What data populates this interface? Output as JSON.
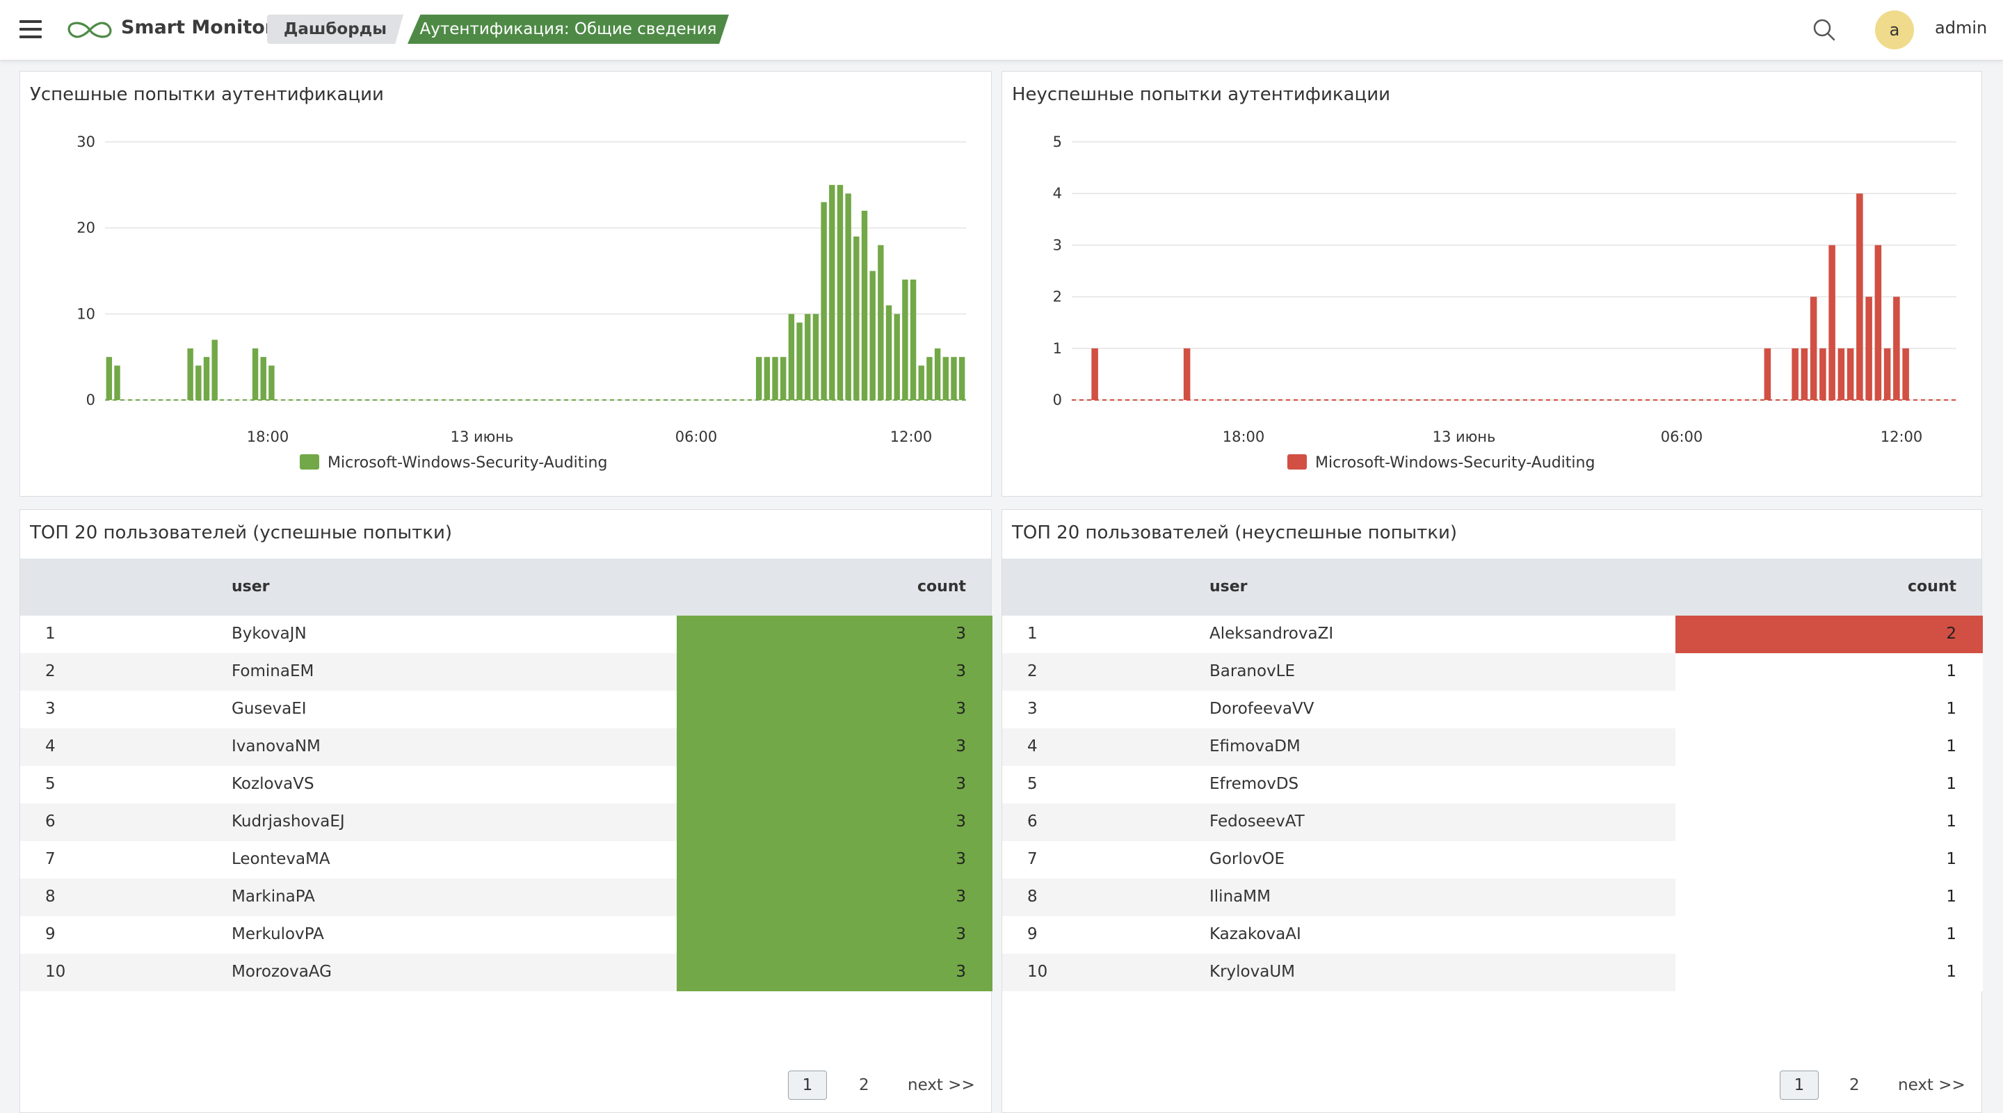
{
  "header": {
    "app_title": "Smart Monitor",
    "breadcrumbs": [
      "Дашборды",
      "Аутентификация: Общие сведения"
    ],
    "user_initial": "a",
    "username": "admin",
    "accent_color": "#4e8a46"
  },
  "panels": {
    "success_chart_title": "Успешные попытки аутентификации",
    "failed_chart_title": "Неуспешные попытки аутентификации",
    "success_table_title": "ТОП 20 пользователей (успешные попытки)",
    "failed_table_title": "ТОП 20 пользователей (неуспешные попытки)"
  },
  "chart_data": [
    {
      "type": "bar",
      "title": "Успешные попытки аутентификации",
      "color": "#72a847",
      "ylim": [
        0,
        30
      ],
      "yticks": [
        0,
        10,
        20,
        30
      ],
      "xticks": [
        "18:00",
        "13 июнь",
        "06:00",
        "12:00"
      ],
      "legend": "Microsoft-Windows-Security-Auditing",
      "legend_position": "bottom-center",
      "grid": true,
      "series": [
        {
          "name": "Microsoft-Windows-Security-Auditing",
          "values": [
            5,
            4,
            0,
            0,
            0,
            0,
            0,
            0,
            0,
            0,
            6,
            4,
            5,
            7,
            0,
            0,
            0,
            0,
            6,
            5,
            4,
            0,
            0,
            0,
            0,
            0,
            0,
            0,
            0,
            0,
            0,
            0,
            0,
            0,
            0,
            0,
            0,
            0,
            0,
            0,
            0,
            0,
            0,
            0,
            0,
            0,
            0,
            0,
            0,
            0,
            0,
            0,
            0,
            0,
            0,
            0,
            0,
            0,
            0,
            0,
            0,
            0,
            0,
            0,
            0,
            0,
            0,
            0,
            0,
            0,
            0,
            0,
            0,
            0,
            0,
            0,
            0,
            0,
            0,
            0,
            5,
            5,
            5,
            5,
            10,
            9,
            10,
            10,
            23,
            25,
            25,
            24,
            19,
            22,
            15,
            18,
            11,
            10,
            14,
            14,
            4,
            5,
            6,
            5,
            5,
            5
          ]
        }
      ]
    },
    {
      "type": "bar",
      "title": "Неуспешные попытки аутентификации",
      "color": "#d14f43",
      "ylim": [
        0,
        5
      ],
      "yticks": [
        0,
        1,
        2,
        3,
        4,
        5
      ],
      "xticks": [
        "18:00",
        "13 июнь",
        "06:00",
        "12:00"
      ],
      "legend": "Microsoft-Windows-Security-Auditing",
      "legend_position": "bottom-center",
      "grid": true,
      "series": [
        {
          "name": "Microsoft-Windows-Security-Auditing",
          "values": [
            0,
            0,
            1,
            0,
            0,
            0,
            0,
            0,
            0,
            0,
            0,
            0,
            1,
            0,
            0,
            0,
            0,
            0,
            0,
            0,
            0,
            0,
            0,
            0,
            0,
            0,
            0,
            0,
            0,
            0,
            0,
            0,
            0,
            0,
            0,
            0,
            0,
            0,
            0,
            0,
            0,
            0,
            0,
            0,
            0,
            0,
            0,
            0,
            0,
            0,
            0,
            0,
            0,
            0,
            0,
            0,
            0,
            0,
            0,
            0,
            0,
            0,
            0,
            0,
            0,
            0,
            0,
            0,
            0,
            0,
            0,
            0,
            0,
            0,
            0,
            1,
            0,
            0,
            1,
            1,
            2,
            1,
            3,
            1,
            1,
            4,
            2,
            3,
            1,
            2,
            1,
            0,
            0,
            0,
            0,
            0
          ]
        }
      ]
    },
    {
      "type": "table",
      "title": "ТОП 20 пользователей (успешные попытки)",
      "columns": [
        "user",
        "count"
      ],
      "bar_color": "#72a847",
      "rows": [
        {
          "idx": "1",
          "user": "BykovaJN",
          "count": "3"
        },
        {
          "idx": "2",
          "user": "FominaEM",
          "count": "3"
        },
        {
          "idx": "3",
          "user": "GusevaEI",
          "count": "3"
        },
        {
          "idx": "4",
          "user": "IvanovaNM",
          "count": "3"
        },
        {
          "idx": "5",
          "user": "KozlovaVS",
          "count": "3"
        },
        {
          "idx": "6",
          "user": "KudrjashovaEJ",
          "count": "3"
        },
        {
          "idx": "7",
          "user": "LeontevaMA",
          "count": "3"
        },
        {
          "idx": "8",
          "user": "MarkinaPA",
          "count": "3"
        },
        {
          "idx": "9",
          "user": "MerkulovPA",
          "count": "3"
        },
        {
          "idx": "10",
          "user": "MorozovaAG",
          "count": "3"
        }
      ],
      "pagination": {
        "current": "1",
        "next_page": "2",
        "next_label": "next >>"
      }
    },
    {
      "type": "table",
      "title": "ТОП 20 пользователей (неуспешные попытки)",
      "columns": [
        "user",
        "count"
      ],
      "bar_color": "#d14f43",
      "rows": [
        {
          "idx": "1",
          "user": "AleksandrovaZI",
          "count": "2"
        },
        {
          "idx": "2",
          "user": "BaranovLE",
          "count": "1"
        },
        {
          "idx": "3",
          "user": "DorofeevaVV",
          "count": "1"
        },
        {
          "idx": "4",
          "user": "EfimovaDM",
          "count": "1"
        },
        {
          "idx": "5",
          "user": "EfremovDS",
          "count": "1"
        },
        {
          "idx": "6",
          "user": "FedoseevAT",
          "count": "1"
        },
        {
          "idx": "7",
          "user": "GorlovOE",
          "count": "1"
        },
        {
          "idx": "8",
          "user": "IlinaMM",
          "count": "1"
        },
        {
          "idx": "9",
          "user": "KazakovaAI",
          "count": "1"
        },
        {
          "idx": "10",
          "user": "KrylovaUM",
          "count": "1"
        }
      ],
      "pagination": {
        "current": "1",
        "next_page": "2",
        "next_label": "next >>"
      }
    }
  ]
}
